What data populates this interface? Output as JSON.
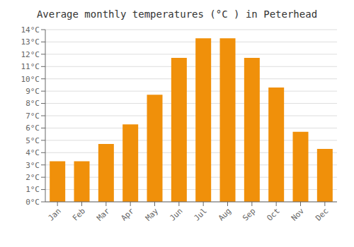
{
  "chart_data": {
    "type": "bar",
    "title": "Average monthly temperatures (°C ) in Peterhead",
    "categories": [
      "Jan",
      "Feb",
      "Mar",
      "Apr",
      "May",
      "Jun",
      "Jul",
      "Aug",
      "Sep",
      "Oct",
      "Nov",
      "Dec"
    ],
    "values": [
      3.3,
      3.3,
      4.7,
      6.3,
      8.7,
      11.7,
      13.3,
      13.3,
      11.7,
      9.3,
      5.7,
      4.3
    ],
    "color": "#F0900A",
    "ylim": [
      0,
      14
    ],
    "yticks": [
      {
        "value": 0,
        "label": "0°C"
      },
      {
        "value": 1,
        "label": "1°C"
      },
      {
        "value": 2,
        "label": "2°C"
      },
      {
        "value": 3,
        "label": "3°C"
      },
      {
        "value": 4,
        "label": "4°C"
      },
      {
        "value": 5,
        "label": "5°C"
      },
      {
        "value": 6,
        "label": "6°C"
      },
      {
        "value": 7,
        "label": "7°C"
      },
      {
        "value": 8,
        "label": "8°C"
      },
      {
        "value": 9,
        "label": "9°C"
      },
      {
        "value": 10,
        "label": "10°C"
      },
      {
        "value": 11,
        "label": "11°C"
      },
      {
        "value": 12,
        "label": "12°C"
      },
      {
        "value": 13,
        "label": "13°C"
      },
      {
        "value": 14,
        "label": "14°C"
      }
    ],
    "grid": true
  }
}
